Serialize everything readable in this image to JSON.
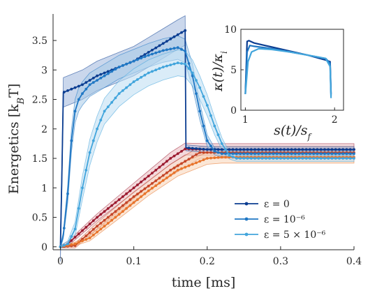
{
  "chart_data": {
    "type": "line",
    "xlabel": "time [ms]",
    "ylabel": "Energetics [k_BT]",
    "xlim": [
      -0.01,
      0.4
    ],
    "ylim": [
      -0.05,
      3.95
    ],
    "xticks": [
      0,
      0.1,
      0.2,
      0.3,
      0.4
    ],
    "xtick_labels": [
      "0",
      "0.1",
      "0.2",
      "0.3",
      "0.4"
    ],
    "yticks": [
      0,
      0.5,
      1,
      1.5,
      2,
      2.5,
      3,
      3.5
    ],
    "ytick_labels": [
      "0",
      "0.5",
      "1",
      "1.5",
      "2",
      "2.5",
      "3",
      "3.5"
    ],
    "grid": false,
    "legend_position": "lower-right",
    "legend": [
      {
        "label": "ε = 0",
        "color": "#0b3d91"
      },
      {
        "label": "ε = 10⁻⁶",
        "color": "#1f77c4"
      },
      {
        "label": "ε = 5 × 10⁻⁶",
        "color": "#42a5dc"
      }
    ],
    "series": [
      {
        "name": "ε = 0",
        "group": "blue",
        "color": "#0b3d91",
        "band_color": "#9fb6dc",
        "x": [
          0,
          0.002,
          0.004,
          0.01,
          0.03,
          0.05,
          0.08,
          0.1,
          0.12,
          0.14,
          0.16,
          0.17,
          0.171,
          0.2,
          0.25,
          0.3,
          0.35,
          0.4
        ],
        "y": [
          0,
          1.2,
          2.62,
          2.65,
          2.75,
          2.9,
          3.05,
          3.15,
          3.3,
          3.45,
          3.6,
          3.67,
          1.68,
          1.65,
          1.65,
          1.65,
          1.65,
          1.65
        ],
        "band": [
          0.25,
          0.25,
          0.25,
          0.25,
          0.25,
          0.25,
          0.25,
          0.25,
          0.25,
          0.25,
          0.25,
          0.25,
          0.05,
          0.05,
          0.05,
          0.05,
          0.05,
          0.05
        ]
      },
      {
        "name": "ε = 10⁻⁶",
        "group": "blue",
        "color": "#1f77c4",
        "band_color": "#a8cbe8",
        "x": [
          0,
          0.004,
          0.01,
          0.015,
          0.02,
          0.025,
          0.03,
          0.04,
          0.06,
          0.08,
          0.1,
          0.12,
          0.14,
          0.16,
          0.17,
          0.18,
          0.19,
          0.2,
          0.21,
          0.22,
          0.25,
          0.3,
          0.35,
          0.4
        ],
        "y": [
          0,
          0.2,
          0.9,
          1.8,
          2.3,
          2.5,
          2.6,
          2.75,
          2.9,
          3.05,
          3.15,
          3.25,
          3.33,
          3.38,
          3.32,
          2.9,
          2.3,
          1.8,
          1.62,
          1.58,
          1.58,
          1.58,
          1.58,
          1.58
        ],
        "band": [
          0.02,
          0.06,
          0.15,
          0.2,
          0.2,
          0.2,
          0.2,
          0.2,
          0.2,
          0.2,
          0.2,
          0.2,
          0.2,
          0.2,
          0.2,
          0.2,
          0.15,
          0.1,
          0.06,
          0.05,
          0.05,
          0.05,
          0.05,
          0.05
        ]
      },
      {
        "name": "ε = 5 × 10⁻⁶",
        "group": "blue",
        "color": "#42a5dc",
        "band_color": "#bcdcf2",
        "x": [
          0,
          0.01,
          0.02,
          0.03,
          0.04,
          0.05,
          0.06,
          0.08,
          0.1,
          0.12,
          0.14,
          0.16,
          0.17,
          0.18,
          0.19,
          0.2,
          0.21,
          0.22,
          0.23,
          0.24,
          0.26,
          0.3,
          0.35,
          0.4
        ],
        "y": [
          0,
          0.05,
          0.3,
          1.0,
          1.6,
          2.0,
          2.3,
          2.6,
          2.8,
          2.95,
          3.05,
          3.12,
          3.1,
          2.95,
          2.7,
          2.4,
          2.05,
          1.75,
          1.55,
          1.5,
          1.5,
          1.5,
          1.5,
          1.5
        ],
        "band": [
          0.02,
          0.05,
          0.12,
          0.2,
          0.22,
          0.22,
          0.22,
          0.22,
          0.22,
          0.22,
          0.22,
          0.22,
          0.22,
          0.22,
          0.2,
          0.18,
          0.15,
          0.1,
          0.06,
          0.05,
          0.05,
          0.05,
          0.05,
          0.05
        ]
      },
      {
        "name": "",
        "group": "red",
        "color": "#9b1b30",
        "band_color": "#e9b9bf",
        "x": [
          0,
          0.01,
          0.05,
          0.1,
          0.15,
          0.17,
          0.2,
          0.25,
          0.3,
          0.35,
          0.4
        ],
        "y": [
          0,
          0.05,
          0.5,
          1.0,
          1.5,
          1.66,
          1.65,
          1.65,
          1.65,
          1.65,
          1.65
        ],
        "band": [
          0.02,
          0.04,
          0.06,
          0.08,
          0.1,
          0.1,
          0.1,
          0.1,
          0.1,
          0.1,
          0.1
        ]
      },
      {
        "name": "",
        "group": "red",
        "color": "#c44527",
        "band_color": "#f0c5b4",
        "x": [
          0,
          0.02,
          0.05,
          0.1,
          0.15,
          0.19,
          0.2,
          0.25,
          0.3,
          0.35,
          0.4
        ],
        "y": [
          0,
          0.02,
          0.35,
          0.85,
          1.3,
          1.6,
          1.6,
          1.6,
          1.6,
          1.6,
          1.6
        ],
        "band": [
          0.02,
          0.04,
          0.06,
          0.08,
          0.1,
          0.1,
          0.1,
          0.1,
          0.1,
          0.1,
          0.1
        ]
      },
      {
        "name": "",
        "group": "red",
        "color": "#e8742b",
        "band_color": "#f7d3b6",
        "x": [
          0,
          0.02,
          0.04,
          0.08,
          0.12,
          0.16,
          0.2,
          0.22,
          0.25,
          0.3,
          0.35,
          0.4
        ],
        "y": [
          0,
          0.05,
          0.15,
          0.55,
          0.95,
          1.3,
          1.5,
          1.52,
          1.52,
          1.52,
          1.52,
          1.52
        ],
        "band": [
          0.02,
          0.03,
          0.05,
          0.07,
          0.08,
          0.1,
          0.1,
          0.1,
          0.1,
          0.1,
          0.1,
          0.1
        ]
      }
    ],
    "inset": {
      "xlabel": "s(t)/s_f",
      "ylabel": "κ(t)/κ_i",
      "xlim": [
        0.95,
        2.1
      ],
      "ylim": [
        0,
        10
      ],
      "xticks": [
        1,
        2
      ],
      "xtick_labels": [
        "1",
        "2"
      ],
      "yticks": [
        0,
        5,
        10
      ],
      "ytick_labels": [
        "0",
        "5",
        "10"
      ],
      "series": [
        {
          "color": "#0b3d91",
          "x": [
            1.0,
            1.02,
            1.04,
            1.1,
            1.3,
            1.5,
            1.7,
            1.9,
            1.95,
            1.96
          ],
          "y": [
            2.0,
            8.5,
            8.6,
            8.3,
            7.8,
            7.3,
            6.8,
            6.2,
            6.0,
            2.0
          ]
        },
        {
          "color": "#1f77c4",
          "x": [
            1.0,
            1.02,
            1.05,
            1.1,
            1.3,
            1.5,
            1.7,
            1.9,
            1.95,
            1.96
          ],
          "y": [
            2.0,
            7.2,
            8.0,
            7.9,
            7.6,
            7.2,
            6.8,
            6.4,
            5.8,
            1.8
          ]
        },
        {
          "color": "#42a5dc",
          "x": [
            1.0,
            1.03,
            1.07,
            1.15,
            1.3,
            1.5,
            1.7,
            1.9,
            1.95,
            1.96
          ],
          "y": [
            2.0,
            6.0,
            7.2,
            7.6,
            7.5,
            7.2,
            6.8,
            6.4,
            5.4,
            1.5
          ]
        }
      ]
    }
  }
}
